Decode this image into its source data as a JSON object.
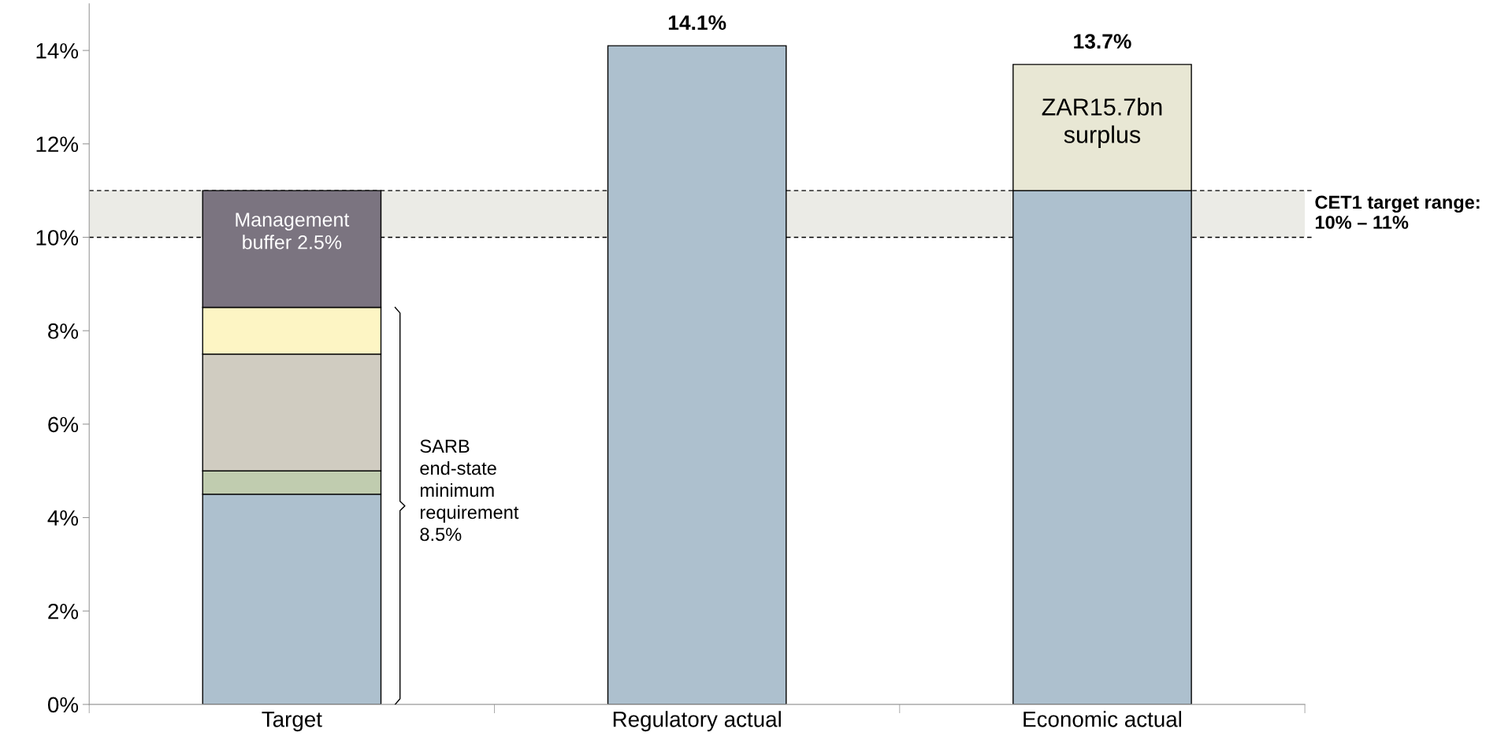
{
  "chart_data": {
    "type": "bar",
    "stacked": true,
    "categories": [
      "Target",
      "Regulatory actual",
      "Economic actual"
    ],
    "series": [
      {
        "color": "#adc0ce",
        "values": [
          4.5,
          14.1,
          11.0
        ]
      },
      {
        "color": "#c0ccaf",
        "values": [
          0.5,
          null,
          null
        ]
      },
      {
        "color": "#d0ccc1",
        "values": [
          2.5,
          null,
          null
        ]
      },
      {
        "color": "#fdf5c4",
        "values": [
          1.0,
          null,
          null
        ]
      },
      {
        "color": "#7b7480",
        "values": [
          2.5,
          null,
          null
        ]
      },
      {
        "color": "#e8e7d4",
        "values": [
          null,
          null,
          2.7
        ]
      }
    ],
    "totals": [
      null,
      "14.1%",
      "13.7%"
    ],
    "ylim": [
      0,
      15
    ],
    "yticks": [
      {
        "value": 0,
        "label": "0%"
      },
      {
        "value": 2,
        "label": "2%"
      },
      {
        "value": 4,
        "label": "4%"
      },
      {
        "value": 6,
        "label": "6%"
      },
      {
        "value": 8,
        "label": "8%"
      },
      {
        "value": 10,
        "label": "10%"
      },
      {
        "value": 12,
        "label": "12%"
      },
      {
        "value": 14,
        "label": "14%"
      }
    ],
    "bands": [
      {
        "axis": "y",
        "from": 10,
        "to": 11,
        "label": "CET1 target range:\n10% – 11%",
        "color": "#ebebe6"
      }
    ],
    "ref_lines": [
      {
        "axis": "y",
        "value": 10,
        "line_style": "dashed"
      },
      {
        "axis": "y",
        "value": 11,
        "line_style": "dashed"
      }
    ],
    "annotations": [
      "Management\nbuffer 2.5%",
      "ZAR15.7bn\nsurplus",
      "SARB\nend-state\nminimum\nrequirement\n8.5%"
    ],
    "grid": false,
    "legend": false
  }
}
